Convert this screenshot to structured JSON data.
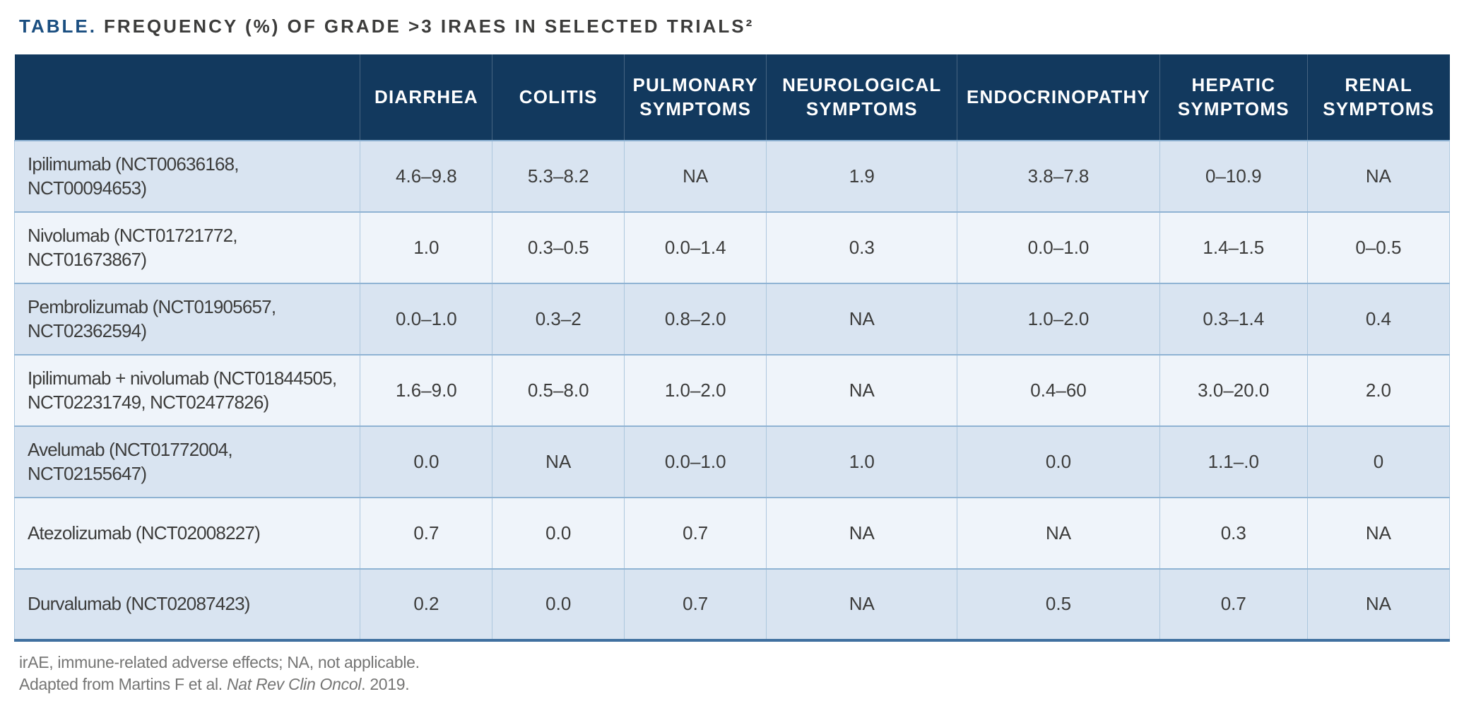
{
  "title": {
    "label": "TABLE.",
    "text": "FREQUENCY (%) OF GRADE >3 IRAES IN SELECTED TRIALS²"
  },
  "colors": {
    "header_bg": "#12395E",
    "row_shade_dark": "#D9E4F1",
    "row_shade_light": "#EFF4FA",
    "cell_divider": "#ADC7DE",
    "row_separator": "#8FB3D3",
    "table_bottom_border": "#4070A0",
    "title_accent": "#1A4E80",
    "body_text": "#3C3C3B",
    "footnote_text": "#757574"
  },
  "table": {
    "columns": [
      "",
      "DIARRHEA",
      "COLITIS",
      "PULMONARY SYMPTOMS",
      "NEUROLOGICAL SYMPTOMS",
      "ENDOCRINOPATHY",
      "HEPATIC SYMPTOMS",
      "RENAL SYMPTOMS"
    ],
    "rows": [
      {
        "name": "Ipilimumab (NCT00636168, NCT00094653)",
        "values": [
          "4.6–9.8",
          "5.3–8.2",
          "NA",
          "1.9",
          "3.8–7.8",
          "0–10.9",
          "NA"
        ]
      },
      {
        "name": "Nivolumab (NCT01721772, NCT01673867)",
        "values": [
          "1.0",
          "0.3–0.5",
          "0.0–1.4",
          "0.3",
          "0.0–1.0",
          "1.4–1.5",
          "0–0.5"
        ]
      },
      {
        "name": "Pembrolizumab (NCT01905657,\nNCT02362594)",
        "values": [
          "0.0–1.0",
          "0.3–2",
          "0.8–2.0",
          "NA",
          "1.0–2.0",
          "0.3–1.4",
          "0.4"
        ]
      },
      {
        "name": "Ipilimumab + nivolumab (NCT01844505,\nNCT02231749, NCT02477826)",
        "values": [
          "1.6–9.0",
          "0.5–8.0",
          "1.0–2.0",
          "NA",
          "0.4–60",
          "3.0–20.0",
          "2.0"
        ]
      },
      {
        "name": "Avelumab (NCT01772004, NCT02155647)",
        "values": [
          "0.0",
          "NA",
          "0.0–1.0",
          "1.0",
          "0.0",
          "1.1–.0",
          "0"
        ]
      },
      {
        "name": "Atezolizumab (NCT02008227)",
        "values": [
          "0.7",
          "0.0",
          "0.7",
          "NA",
          "NA",
          "0.3",
          "NA"
        ]
      },
      {
        "name": "Durvalumab (NCT02087423)",
        "values": [
          "0.2",
          "0.0",
          "0.7",
          "NA",
          "0.5",
          "0.7",
          "NA"
        ]
      }
    ]
  },
  "footnotes": {
    "line1": "irAE, immune-related adverse effects; NA, not applicable.",
    "line2_prefix": "Adapted from Martins F et al. ",
    "line2_italic": "Nat Rev Clin Oncol",
    "line2_suffix": ". 2019."
  }
}
